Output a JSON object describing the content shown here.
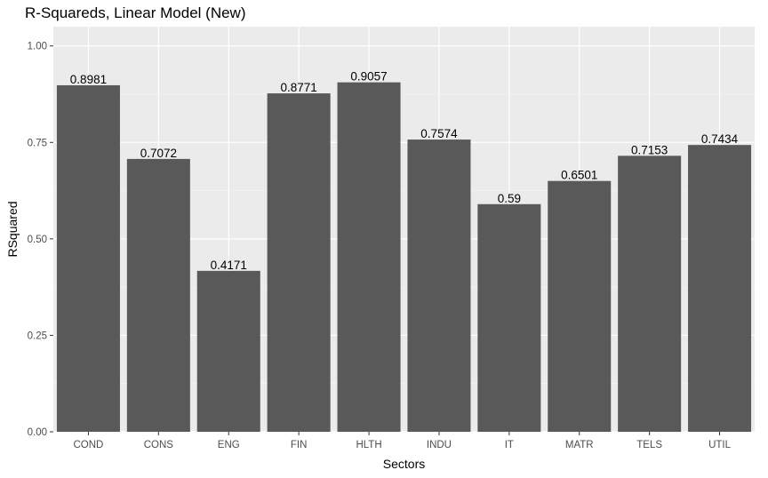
{
  "chart_data": {
    "type": "bar",
    "title": "R-Squareds, Linear Model (New)",
    "xlabel": "Sectors",
    "ylabel": "RSquared",
    "categories": [
      "COND",
      "CONS",
      "ENG",
      "FIN",
      "HLTH",
      "INDU",
      "IT",
      "MATR",
      "TELS",
      "UTIL"
    ],
    "values": [
      0.8981,
      0.7072,
      0.4171,
      0.8771,
      0.9057,
      0.7574,
      0.59,
      0.6501,
      0.7153,
      0.7434
    ],
    "data_labels": [
      "0.8981",
      "0.7072",
      "0.4171",
      "0.8771",
      "0.9057",
      "0.7574",
      "0.59",
      "0.6501",
      "0.7153",
      "0.7434"
    ],
    "yticks": [
      0.0,
      0.25,
      0.5,
      0.75,
      1.0
    ],
    "ytick_labels": [
      "0.00",
      "0.25",
      "0.50",
      "0.75",
      "1.00"
    ],
    "ylim": [
      0,
      1.05
    ],
    "grid": true,
    "legend": "none",
    "colors": {
      "bar": "#595959",
      "panel": "#ebebeb",
      "grid_major": "#ffffff",
      "grid_minor": "#f5f5f5"
    }
  }
}
